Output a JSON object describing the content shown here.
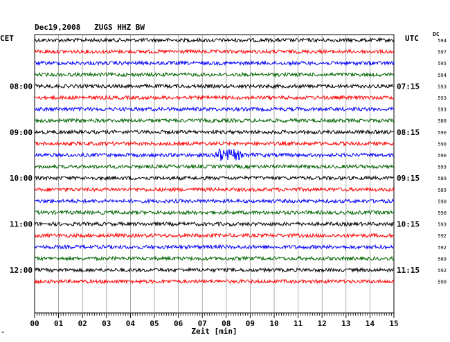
{
  "header": {
    "title": "Dec19,2008   ZUGS HHZ BW",
    "left_tz": "CET",
    "right_tz": "UTC",
    "dc_label": "DC",
    "corner_note": "\""
  },
  "chart_data": {
    "type": "line",
    "title": "Dec19,2008   ZUGS HHZ BW",
    "xlabel": "Zeit [min]",
    "ylabel": "",
    "xlim": [
      0,
      15
    ],
    "x_ticks": [
      "00",
      "01",
      "02",
      "03",
      "04",
      "05",
      "06",
      "07",
      "08",
      "09",
      "10",
      "11",
      "12",
      "13",
      "14",
      "15"
    ],
    "left_time_labels": [
      {
        "row": 4,
        "text": "08:00"
      },
      {
        "row": 8,
        "text": "09:00"
      },
      {
        "row": 12,
        "text": "10:00"
      },
      {
        "row": 16,
        "text": "11:00"
      },
      {
        "row": 20,
        "text": "12:00"
      }
    ],
    "right_time_labels": [
      {
        "row": 4,
        "text": "07:15"
      },
      {
        "row": 8,
        "text": "08:15"
      },
      {
        "row": 12,
        "text": "09:15"
      },
      {
        "row": 16,
        "text": "10:15"
      },
      {
        "row": 20,
        "text": "11:15"
      }
    ],
    "trace_colors": [
      "#000000",
      "#ff0000",
      "#0000ff",
      "#006400"
    ],
    "dc_offsets": [
      594,
      597,
      595,
      594,
      593,
      593,
      593,
      588,
      590,
      590,
      590,
      593,
      589,
      589,
      590,
      590,
      593,
      592,
      592,
      589,
      592,
      590
    ],
    "events": [
      {
        "row": 10,
        "start_min": 7.5,
        "end_min": 9.8,
        "description": "earthquake signal"
      }
    ]
  }
}
